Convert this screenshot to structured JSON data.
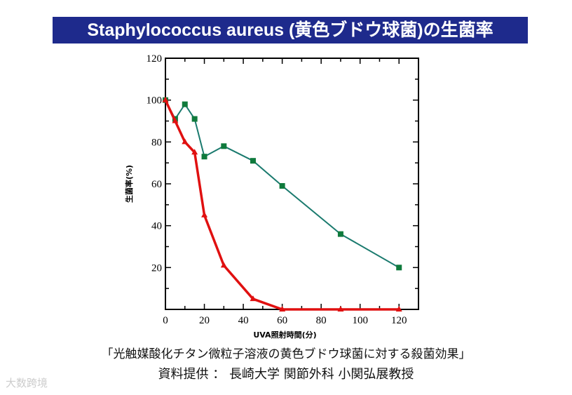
{
  "title": "Staphylococcus aureus (黄色ブドウ球菌)の生菌率",
  "caption": "「光触媒酸化チタン微粒子溶液の黄色ブドウ球菌に対する殺菌効果」",
  "credit": "資料提供 ： 長崎大学 関節外科 小関弘展教授",
  "watermark": "大数跨境",
  "chart_data": {
    "type": "line",
    "xlabel": "UVA照射時間(分)",
    "ylabel": "生菌率(%)",
    "xlim": [
      0,
      130
    ],
    "ylim": [
      0,
      120
    ],
    "xticks": [
      0,
      20,
      40,
      60,
      80,
      100,
      120
    ],
    "yticks": [
      20,
      40,
      60,
      80,
      100,
      120
    ],
    "grid": false,
    "series": [
      {
        "color": "#1a7a6e",
        "marker": "square",
        "marker_color": "#0f7a3c",
        "x": [
          0,
          5,
          10,
          15,
          20,
          30,
          45,
          60,
          90,
          120
        ],
        "y": [
          100,
          91,
          98,
          91,
          73,
          78,
          71,
          59,
          36,
          20
        ]
      },
      {
        "color": "#e01010",
        "marker": "triangle",
        "marker_color": "#e01010",
        "x": [
          0,
          5,
          10,
          15,
          20,
          30,
          45,
          60,
          90,
          120
        ],
        "y": [
          100,
          90,
          80,
          75,
          45,
          21,
          5,
          0,
          0,
          0
        ]
      }
    ]
  }
}
